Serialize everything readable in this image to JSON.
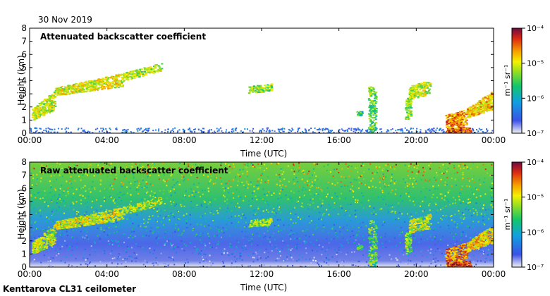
{
  "date": "30 Nov 2019",
  "footer": "Kenttarova CL31 ceilometer",
  "colors": {
    "gradient": [
      "#f2f2f2",
      "#3b52e6",
      "#10a0e0",
      "#12c56a",
      "#8fdd25",
      "#f4f100",
      "#f6a000",
      "#dc2a10",
      "#6e0a42"
    ]
  },
  "chart_data": [
    {
      "type": "heatmap",
      "title": "Attenuated backscatter coefficient",
      "xlabel": "Time (UTC)",
      "ylabel": "Height (km)",
      "xlim": [
        0,
        24
      ],
      "ylim": [
        0,
        8
      ],
      "xticks": [
        "00:00",
        "04:00",
        "08:00",
        "12:00",
        "16:00",
        "20:00",
        "00:00"
      ],
      "yticks": [
        "0",
        "1",
        "2",
        "3",
        "4",
        "5",
        "6",
        "7",
        "8"
      ],
      "colorbar": {
        "label": "m⁻¹ sr⁻¹",
        "ticks": [
          "10⁻⁷",
          "10⁻⁶",
          "10⁻⁵",
          "10⁻⁴"
        ],
        "range": [
          -7,
          -4
        ]
      },
      "layers": [
        {
          "name": "surface layer",
          "x": [
            0,
            24
          ],
          "y": [
            0,
            0.6
          ],
          "log_value": -6.5
        },
        {
          "name": "rising cloud",
          "x": [
            0.4,
            6.8
          ],
          "y_start": [
            1.4,
            2.6
          ],
          "y_end": [
            4.6,
            5.4
          ],
          "log_value": -5.2
        },
        {
          "name": "cloud 12 UTC",
          "x": [
            11.3,
            12.5
          ],
          "y": [
            3.1,
            3.8
          ],
          "log_value": -5.3
        },
        {
          "name": "fall streak",
          "x": [
            17.6,
            18.1
          ],
          "y": [
            0,
            3.6
          ],
          "log_value": -5.6
        },
        {
          "name": "cloud 20 UTC",
          "x": [
            19.5,
            20.8
          ],
          "y": [
            2.5,
            4.1
          ],
          "log_value": -5.4
        },
        {
          "name": "low cloud late",
          "x": [
            21.6,
            24
          ],
          "y": [
            0,
            3.3
          ],
          "log_value": -4.7
        }
      ]
    },
    {
      "type": "heatmap",
      "title": "Raw attenuated backscatter coefficient",
      "xlabel": "Time (UTC)",
      "ylabel": "Height (km)",
      "xlim": [
        0,
        24
      ],
      "ylim": [
        0,
        8
      ],
      "xticks": [
        "00:00",
        "04:00",
        "08:00",
        "12:00",
        "16:00",
        "20:00",
        "00:00"
      ],
      "yticks": [
        "0",
        "1",
        "2",
        "3",
        "4",
        "5",
        "6",
        "7",
        "8"
      ],
      "colorbar": {
        "label": "m⁻¹ sr⁻¹",
        "ticks": [
          "10⁻⁷",
          "10⁻⁶",
          "10⁻⁵",
          "10⁻⁴"
        ],
        "range": [
          -7,
          -4
        ]
      },
      "noise": "increasing with height, green/yellow/red speckle above 4 km"
    }
  ]
}
